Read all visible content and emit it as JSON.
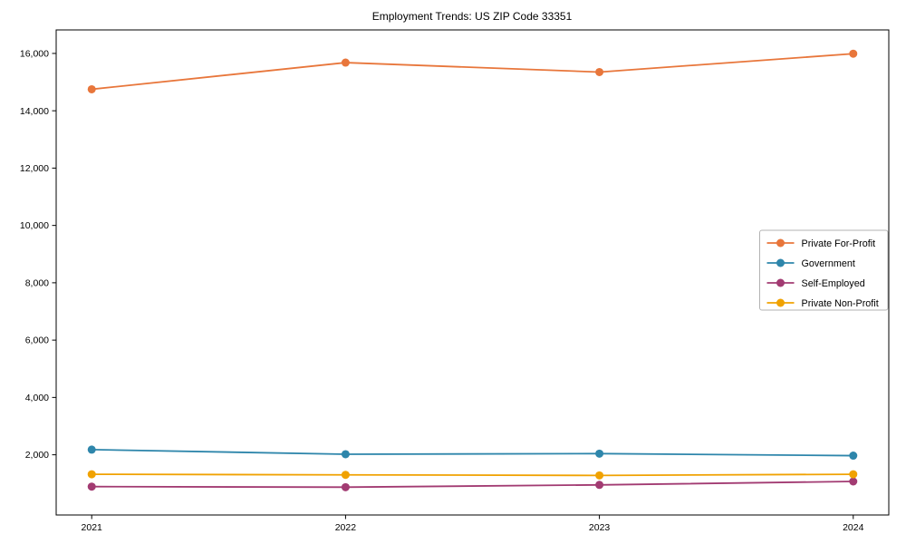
{
  "title": "Employment Trends: US ZIP Code 33351",
  "chart_data": {
    "type": "line",
    "title": "Employment Trends: US ZIP Code 33351",
    "xlabel": "",
    "ylabel": "",
    "x": [
      2021,
      2022,
      2023,
      2024
    ],
    "x_tick_labels": [
      "2021",
      "2022",
      "2023",
      "2024"
    ],
    "series": [
      {
        "name": "Private For-Profit",
        "color": "#E8763B",
        "values": [
          14750,
          15680,
          15350,
          15990
        ]
      },
      {
        "name": "Government",
        "color": "#2E86AB",
        "values": [
          2180,
          2020,
          2040,
          1970
        ]
      },
      {
        "name": "Self-Employed",
        "color": "#A23B72",
        "values": [
          890,
          870,
          950,
          1070
        ]
      },
      {
        "name": "Private Non-Profit",
        "color": "#F0A202",
        "values": [
          1320,
          1300,
          1280,
          1320
        ]
      }
    ],
    "y_ticks": [
      2000,
      4000,
      6000,
      8000,
      10000,
      12000,
      14000,
      16000
    ],
    "y_tick_labels": [
      "2,000",
      "4,000",
      "6,000",
      "8,000",
      "10,000",
      "12,000",
      "14,000",
      "16,000"
    ],
    "xlim": [
      2020.86,
      2024.14
    ],
    "ylim": [
      -100,
      16820
    ],
    "grid": false,
    "legend_position": "center-right",
    "marker": "circle",
    "spine_color": "#000000",
    "legend_border_color": "#b3b3b3",
    "background_color": "#ffffff"
  }
}
